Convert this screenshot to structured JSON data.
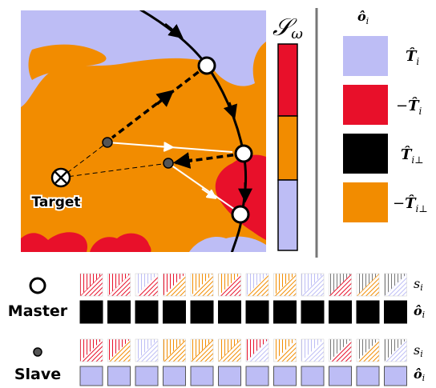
{
  "map": {
    "target_label": "Target",
    "colors": {
      "lavender": "#bdbdf5",
      "orange": "#f28c00",
      "red": "#e8102a",
      "black": "#000000",
      "white": "#ffffff"
    }
  },
  "colorbar": {
    "title": "𝒮",
    "title_sub": "ω",
    "segments": [
      "red",
      "orange",
      "lavender"
    ]
  },
  "legend": {
    "title": "ô",
    "title_sub": "i",
    "items": [
      {
        "color": "lavender",
        "label": "T̂",
        "sub": "i",
        "sign": ""
      },
      {
        "color": "red",
        "label": "T̂",
        "sub": "i",
        "sign": "−"
      },
      {
        "color": "black",
        "label": "T̂",
        "sub": "i⊥",
        "sign": ""
      },
      {
        "color": "orange",
        "label": "T̂",
        "sub": "i⊥",
        "sign": "−"
      }
    ]
  },
  "master": {
    "label": "Master",
    "row_s_label": "s",
    "row_s_sub": "i",
    "row_o_label": "ô",
    "row_o_sub": "i",
    "s_tiles": [
      [
        "red",
        "red"
      ],
      [
        "red",
        "red"
      ],
      [
        "lavender",
        "red"
      ],
      [
        "red",
        "orange"
      ],
      [
        "orange",
        "orange"
      ],
      [
        "orange",
        "red"
      ],
      [
        "lavender",
        "orange"
      ],
      [
        "orange",
        "orange"
      ],
      [
        "lavender",
        "lavender"
      ],
      [
        "gray",
        "red"
      ],
      [
        "gray",
        "orange"
      ],
      [
        "gray",
        "lavender"
      ]
    ],
    "o_tiles": [
      "black",
      "black",
      "black",
      "black",
      "black",
      "black",
      "black",
      "black",
      "black",
      "black",
      "black",
      "black"
    ]
  },
  "slave": {
    "label": "Slave",
    "row_s_label": "s",
    "row_s_sub": "i",
    "row_o_label": "ô",
    "row_o_sub": "i",
    "s_tiles": [
      [
        "red",
        "red"
      ],
      [
        "red",
        "orange"
      ],
      [
        "lavender",
        "lavender"
      ],
      [
        "orange",
        "orange"
      ],
      [
        "orange",
        "orange"
      ],
      [
        "orange",
        "orange"
      ],
      [
        "red",
        "lavender"
      ],
      [
        "orange",
        "orange"
      ],
      [
        "lavender",
        "lavender"
      ],
      [
        "gray",
        "red"
      ],
      [
        "gray",
        "orange"
      ],
      [
        "gray",
        "lavender"
      ]
    ],
    "o_tiles": [
      "lavender",
      "lavender",
      "lavender",
      "lavender",
      "lavender",
      "lavender",
      "lavender",
      "lavender",
      "lavender",
      "lavender",
      "lavender",
      "lavender"
    ]
  }
}
